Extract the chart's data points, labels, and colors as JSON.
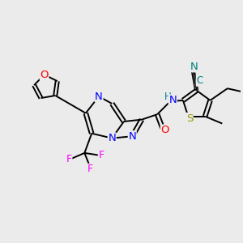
{
  "bg_color": "#ebebeb",
  "atom_colors": {
    "N": "#0000ff",
    "O": "#ff0000",
    "S": "#999900",
    "F": "#ff00ff",
    "CN_color": "#008080",
    "H_color": "#008080",
    "default": "#000000"
  },
  "font_size": 8.5,
  "bond_color": "#000000",
  "bond_lw": 1.4
}
